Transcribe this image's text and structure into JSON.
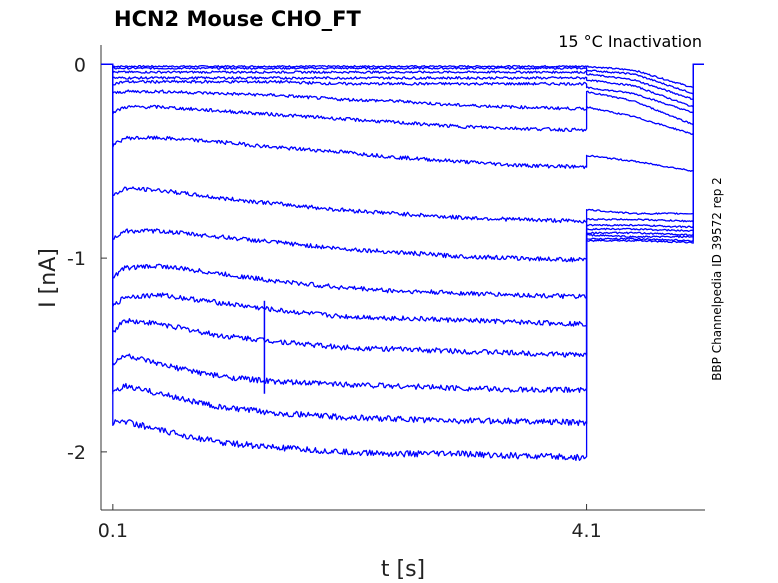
{
  "chart_data": {
    "type": "line",
    "title": "HCN2  Mouse  CHO_FT",
    "annotation": "15 °C  Inactivation",
    "side_label": "BBP Channelpedia ID 39572 rep 2",
    "xlabel": "t [s]",
    "ylabel": "I [nA]",
    "xlim": [
      0.0,
      5.1
    ],
    "ylim": [
      -2.3,
      0.1
    ],
    "x_ticks": [
      {
        "value": 0.1,
        "label": "0.1"
      },
      {
        "value": 4.1,
        "label": "4.1"
      }
    ],
    "y_ticks": [
      {
        "value": 0,
        "label": "0"
      },
      {
        "value": -1,
        "label": "-1"
      },
      {
        "value": -2,
        "label": "-2"
      }
    ],
    "grid": false,
    "line_color": "#0000ff",
    "time_points": [
      0.1,
      0.2,
      0.5,
      1.0,
      1.5,
      2.0,
      2.5,
      3.0,
      3.5,
      4.1
    ],
    "tail_points": [
      4.1,
      4.5,
      5.0
    ],
    "traces": [
      {
        "step": [
          -0.01,
          -0.01,
          -0.01,
          -0.01,
          -0.01,
          -0.01,
          -0.01,
          -0.01,
          -0.01,
          -0.01
        ],
        "tail": [
          -0.01,
          -0.03,
          -0.12
        ]
      },
      {
        "step": [
          -0.02,
          -0.02,
          -0.02,
          -0.02,
          -0.02,
          -0.02,
          -0.02,
          -0.02,
          -0.02,
          -0.02
        ],
        "tail": [
          -0.03,
          -0.05,
          -0.15
        ]
      },
      {
        "step": [
          -0.04,
          -0.04,
          -0.04,
          -0.04,
          -0.04,
          -0.04,
          -0.04,
          -0.04,
          -0.04,
          -0.04
        ],
        "tail": [
          -0.05,
          -0.08,
          -0.18
        ]
      },
      {
        "step": [
          -0.07,
          -0.07,
          -0.07,
          -0.07,
          -0.07,
          -0.07,
          -0.07,
          -0.07,
          -0.07,
          -0.07
        ],
        "tail": [
          -0.08,
          -0.11,
          -0.22
        ]
      },
      {
        "step": [
          -0.1,
          -0.09,
          -0.09,
          -0.09,
          -0.09,
          -0.1,
          -0.1,
          -0.1,
          -0.1,
          -0.1
        ],
        "tail": [
          -0.12,
          -0.15,
          -0.25
        ]
      },
      {
        "step": [
          -0.15,
          -0.14,
          -0.14,
          -0.15,
          -0.16,
          -0.18,
          -0.19,
          -0.21,
          -0.22,
          -0.23
        ],
        "tail": [
          -0.14,
          -0.19,
          -0.31
        ]
      },
      {
        "step": [
          -0.25,
          -0.22,
          -0.22,
          -0.24,
          -0.26,
          -0.28,
          -0.3,
          -0.32,
          -0.33,
          -0.34
        ],
        "tail": [
          -0.22,
          -0.27,
          -0.36
        ]
      },
      {
        "step": [
          -0.42,
          -0.38,
          -0.38,
          -0.4,
          -0.43,
          -0.45,
          -0.48,
          -0.5,
          -0.52,
          -0.53
        ],
        "tail": [
          -0.47,
          -0.5,
          -0.55
        ]
      },
      {
        "step": [
          -0.68,
          -0.64,
          -0.65,
          -0.69,
          -0.72,
          -0.75,
          -0.77,
          -0.79,
          -0.8,
          -0.81
        ],
        "tail": [
          -0.75,
          -0.77,
          -0.77
        ]
      },
      {
        "step": [
          -0.9,
          -0.86,
          -0.86,
          -0.89,
          -0.92,
          -0.95,
          -0.97,
          -0.99,
          -1.0,
          -1.01
        ],
        "tail": [
          -0.8,
          -0.8,
          -0.81
        ]
      },
      {
        "step": [
          -1.1,
          -1.05,
          -1.04,
          -1.08,
          -1.12,
          -1.15,
          -1.17,
          -1.18,
          -1.19,
          -1.2
        ],
        "tail": [
          -0.83,
          -0.83,
          -0.84
        ]
      },
      {
        "step": [
          -1.25,
          -1.2,
          -1.19,
          -1.23,
          -1.27,
          -1.3,
          -1.31,
          -1.32,
          -1.33,
          -1.34
        ],
        "tail": [
          -0.85,
          -0.85,
          -0.86
        ]
      },
      {
        "step": [
          -1.38,
          -1.32,
          -1.34,
          -1.4,
          -1.43,
          -1.46,
          -1.47,
          -1.48,
          -1.49,
          -1.5
        ],
        "tail": [
          -0.87,
          -0.87,
          -0.88
        ]
      },
      {
        "step": [
          -1.55,
          -1.5,
          -1.55,
          -1.61,
          -1.64,
          -1.65,
          -1.66,
          -1.67,
          -1.68,
          -1.68
        ],
        "tail": [
          -0.88,
          -0.89,
          -0.89
        ]
      },
      {
        "step": [
          -1.7,
          -1.66,
          -1.7,
          -1.77,
          -1.8,
          -1.82,
          -1.83,
          -1.84,
          -1.84,
          -1.85
        ],
        "tail": [
          -0.9,
          -0.9,
          -0.91
        ]
      },
      {
        "step": [
          -1.85,
          -1.84,
          -1.89,
          -1.95,
          -1.98,
          -2.0,
          -2.01,
          -2.01,
          -2.02,
          -2.03
        ],
        "tail": [
          -0.91,
          -0.91,
          -0.92
        ]
      }
    ],
    "artifact": {
      "t": 1.38,
      "y_top": -1.22,
      "y_bottom": -1.7
    }
  }
}
